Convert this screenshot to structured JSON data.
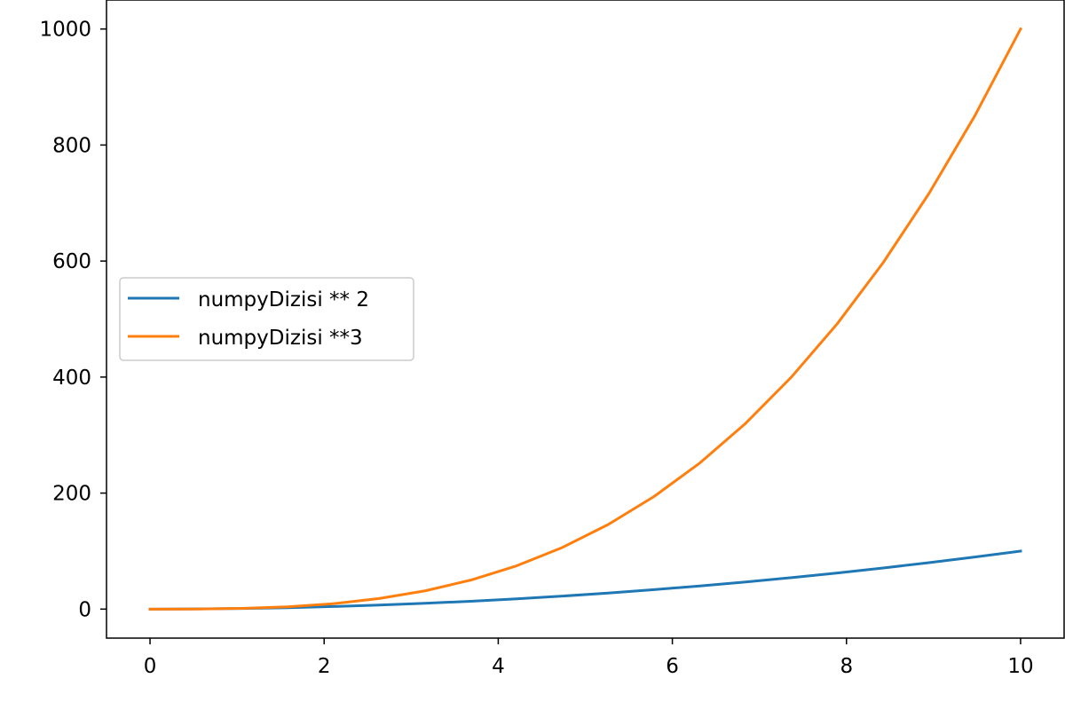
{
  "chart_data": {
    "type": "line",
    "title": "",
    "xlabel": "",
    "ylabel": "",
    "xlim": [
      -0.5,
      10.5
    ],
    "ylim": [
      -50,
      1050
    ],
    "xticks": [
      0,
      2,
      4,
      6,
      8,
      10
    ],
    "yticks": [
      0,
      200,
      400,
      600,
      800,
      1000
    ],
    "grid": false,
    "legend_position": "center-left",
    "x": [
      0,
      0.526,
      1.053,
      1.579,
      2.105,
      2.632,
      3.158,
      3.684,
      4.211,
      4.737,
      5.263,
      5.789,
      6.316,
      6.842,
      7.368,
      7.895,
      8.421,
      8.947,
      9.474,
      10
    ],
    "series": [
      {
        "name": "numpyDizisi ** 2",
        "color": "#1f77b4",
        "values": [
          0,
          0.28,
          1.11,
          2.49,
          4.43,
          6.93,
          9.97,
          13.57,
          17.73,
          22.44,
          27.7,
          33.51,
          39.89,
          46.81,
          54.29,
          62.33,
          70.91,
          80.05,
          89.75,
          100
        ]
      },
      {
        "name": "numpyDizisi **3",
        "color": "#ff7f0e",
        "values": [
          0,
          0.15,
          1.17,
          3.94,
          9.33,
          18.23,
          31.49,
          50.0,
          74.64,
          106.29,
          145.81,
          194.05,
          251.93,
          320.31,
          400.05,
          492.06,
          597.17,
          716.28,
          850.25,
          1000
        ]
      }
    ]
  }
}
